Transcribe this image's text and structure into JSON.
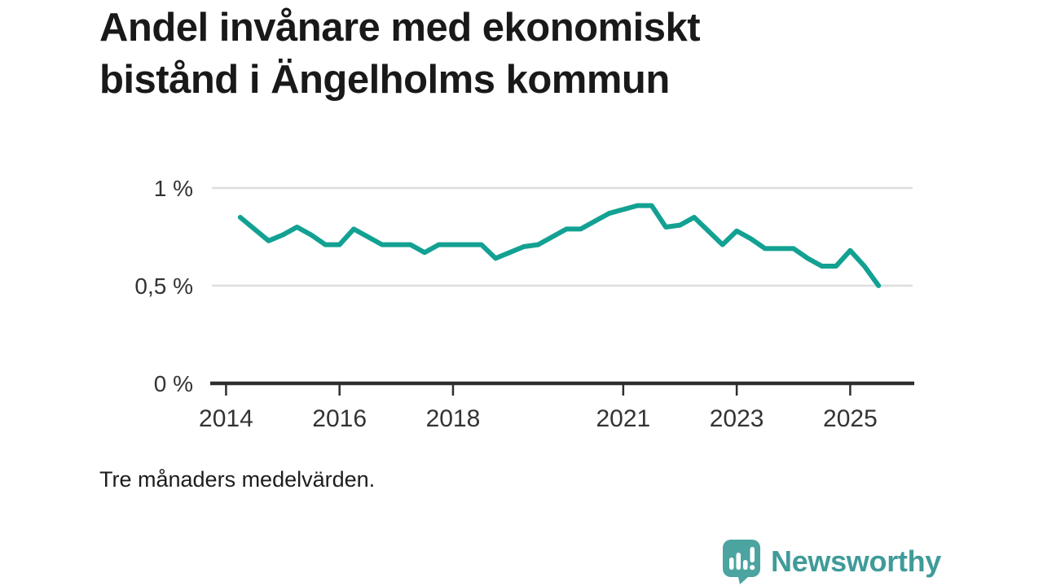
{
  "title": {
    "line1": "Andel invånare med ekonomiskt",
    "line2": "bistånd i Ängelholms kommun",
    "full": "Andel invånare med ekonomiskt bistånd i Ängelholms kommun"
  },
  "caption": "Tre månaders medelvärden.",
  "branding": {
    "logo_text": "Newsworthy",
    "logo_text_color": "#3f9b99",
    "logo_icon_color": "#4ba4a0",
    "logo_icon": "speech-bubble-bar-chart-exclamation"
  },
  "chart_data": {
    "type": "line",
    "title": "Andel invånare med ekonomiskt bistånd i Ängelholms kommun",
    "xlabel": "",
    "ylabel": "",
    "unit": "%",
    "grid": "horizontal",
    "gridline_values": [
      0.5,
      1
    ],
    "xlim": [
      2013.75,
      2026.1
    ],
    "ylim": [
      0,
      1
    ],
    "x_ticks": [
      {
        "value": 2014,
        "label": "2014"
      },
      {
        "value": 2016,
        "label": "2016"
      },
      {
        "value": 2018,
        "label": "2018"
      },
      {
        "value": 2021,
        "label": "2021"
      },
      {
        "value": 2023,
        "label": "2023"
      },
      {
        "value": 2025,
        "label": "2025"
      }
    ],
    "y_ticks": [
      {
        "value": 0,
        "label": "0 %"
      },
      {
        "value": 0.5,
        "label": "0,5 %"
      },
      {
        "value": 1,
        "label": "1 %"
      }
    ],
    "series": [
      {
        "name": "Andel invånare med ekonomiskt bistånd",
        "color": "#12a192",
        "x": [
          2014.25,
          2014.5,
          2014.75,
          2015.0,
          2015.25,
          2015.5,
          2015.75,
          2016.0,
          2016.25,
          2016.5,
          2016.75,
          2017.0,
          2017.25,
          2017.5,
          2017.75,
          2018.0,
          2018.25,
          2018.5,
          2018.75,
          2019.0,
          2019.25,
          2019.5,
          2019.75,
          2020.0,
          2020.25,
          2020.5,
          2020.75,
          2021.0,
          2021.25,
          2021.5,
          2021.75,
          2022.0,
          2022.25,
          2022.5,
          2022.75,
          2023.0,
          2023.25,
          2023.5,
          2023.75,
          2024.0,
          2024.25,
          2024.5,
          2024.75,
          2025.0,
          2025.25,
          2025.5
        ],
        "values": [
          0.85,
          0.79,
          0.73,
          0.76,
          0.8,
          0.76,
          0.71,
          0.71,
          0.79,
          0.75,
          0.71,
          0.71,
          0.71,
          0.67,
          0.71,
          0.71,
          0.71,
          0.71,
          0.64,
          0.67,
          0.7,
          0.71,
          0.75,
          0.79,
          0.79,
          0.83,
          0.87,
          0.89,
          0.91,
          0.91,
          0.8,
          0.81,
          0.85,
          0.78,
          0.71,
          0.78,
          0.74,
          0.69,
          0.69,
          0.69,
          0.64,
          0.6,
          0.6,
          0.68,
          0.6,
          0.5
        ]
      }
    ],
    "style": {
      "gridline_color": "#dedede",
      "axis_color": "#2e2e2e",
      "tick_label_color": "#333333",
      "line_width": 6
    }
  }
}
